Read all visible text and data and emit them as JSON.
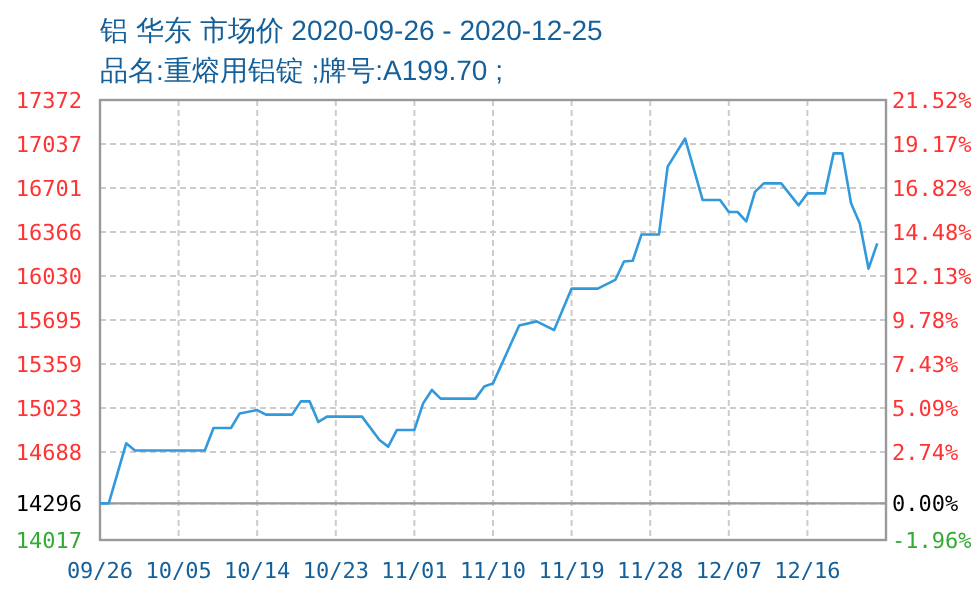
{
  "chart_data": {
    "type": "line",
    "title": "铝 华东 市场价 2020-09-26 - 2020-12-25",
    "subtitle": "品名:重熔用铝锭 ;牌号:A199.70 ;",
    "x": [
      "2020-09-26",
      "2020-09-27",
      "2020-09-29",
      "2020-09-30",
      "2020-10-08",
      "2020-10-09",
      "2020-10-11",
      "2020-10-12",
      "2020-10-14",
      "2020-10-15",
      "2020-10-18",
      "2020-10-19",
      "2020-10-20",
      "2020-10-21",
      "2020-10-22",
      "2020-10-26",
      "2020-10-28",
      "2020-10-29",
      "2020-10-30",
      "2020-11-01",
      "2020-11-02",
      "2020-11-03",
      "2020-11-04",
      "2020-11-08",
      "2020-11-09",
      "2020-11-10",
      "2020-11-13",
      "2020-11-15",
      "2020-11-17",
      "2020-11-19",
      "2020-11-22",
      "2020-11-24",
      "2020-11-25",
      "2020-11-26",
      "2020-11-27",
      "2020-11-29",
      "2020-11-30",
      "2020-12-02",
      "2020-12-04",
      "2020-12-06",
      "2020-12-07",
      "2020-12-08",
      "2020-12-09",
      "2020-12-10",
      "2020-12-11",
      "2020-12-13",
      "2020-12-15",
      "2020-12-16",
      "2020-12-18",
      "2020-12-19",
      "2020-12-20",
      "2020-12-21",
      "2020-12-22",
      "2020-12-23",
      "2020-12-24"
    ],
    "series": [
      {
        "color": "#3399dd",
        "values": [
          14296,
          14296,
          14754,
          14699,
          14699,
          14871,
          14871,
          14982,
          15008,
          14973,
          14973,
          15074,
          15074,
          14917,
          14958,
          14958,
          14780,
          14729,
          14856,
          14856,
          15059,
          15161,
          15095,
          15095,
          15187,
          15211,
          15653,
          15684,
          15618,
          15934,
          15934,
          16000,
          16141,
          16146,
          16346,
          16346,
          16864,
          17078,
          16610,
          16610,
          16518,
          16518,
          16446,
          16671,
          16736,
          16736,
          16569,
          16660,
          16660,
          16965,
          16965,
          16585,
          16431,
          16086,
          16279
        ]
      }
    ],
    "xlim": [
      "2020-09-26",
      "2020-12-25"
    ],
    "xticks": [
      {
        "value": "2020-09-26",
        "label": "09/26"
      },
      {
        "value": "2020-10-05",
        "label": "10/05"
      },
      {
        "value": "2020-10-14",
        "label": "10/14"
      },
      {
        "value": "2020-10-23",
        "label": "10/23"
      },
      {
        "value": "2020-11-01",
        "label": "11/01"
      },
      {
        "value": "2020-11-10",
        "label": "11/10"
      },
      {
        "value": "2020-11-19",
        "label": "11/19"
      },
      {
        "value": "2020-11-28",
        "label": "11/28"
      },
      {
        "value": "2020-12-07",
        "label": "12/07"
      },
      {
        "value": "2020-12-16",
        "label": "12/16"
      }
    ],
    "ylim": [
      14017,
      17372
    ],
    "yticks": [
      14017,
      14296,
      14688,
      15023,
      15359,
      15695,
      16030,
      16366,
      16701,
      17037,
      17372
    ],
    "y2lim": [
      -1.96,
      21.52
    ],
    "y2ticks": [
      {
        "value": -1.96,
        "label": "-1.96%"
      },
      {
        "value": 0,
        "label": "0.00%"
      },
      {
        "value": 2.74,
        "label": "2.74%"
      },
      {
        "value": 5.09,
        "label": "5.09%"
      },
      {
        "value": 7.43,
        "label": "7.43%"
      },
      {
        "value": 9.78,
        "label": "9.78%"
      },
      {
        "value": 12.13,
        "label": "12.13%"
      },
      {
        "value": 14.48,
        "label": "14.48%"
      },
      {
        "value": 16.82,
        "label": "16.82%"
      },
      {
        "value": 19.17,
        "label": "19.17%"
      },
      {
        "value": 21.52,
        "label": "21.52%"
      }
    ],
    "ref_lines": [
      {
        "axis": "y",
        "value": 14296,
        "color": "#999999",
        "line_style": "solid"
      }
    ],
    "grid": true,
    "marker": "none",
    "line_style": "solid"
  }
}
